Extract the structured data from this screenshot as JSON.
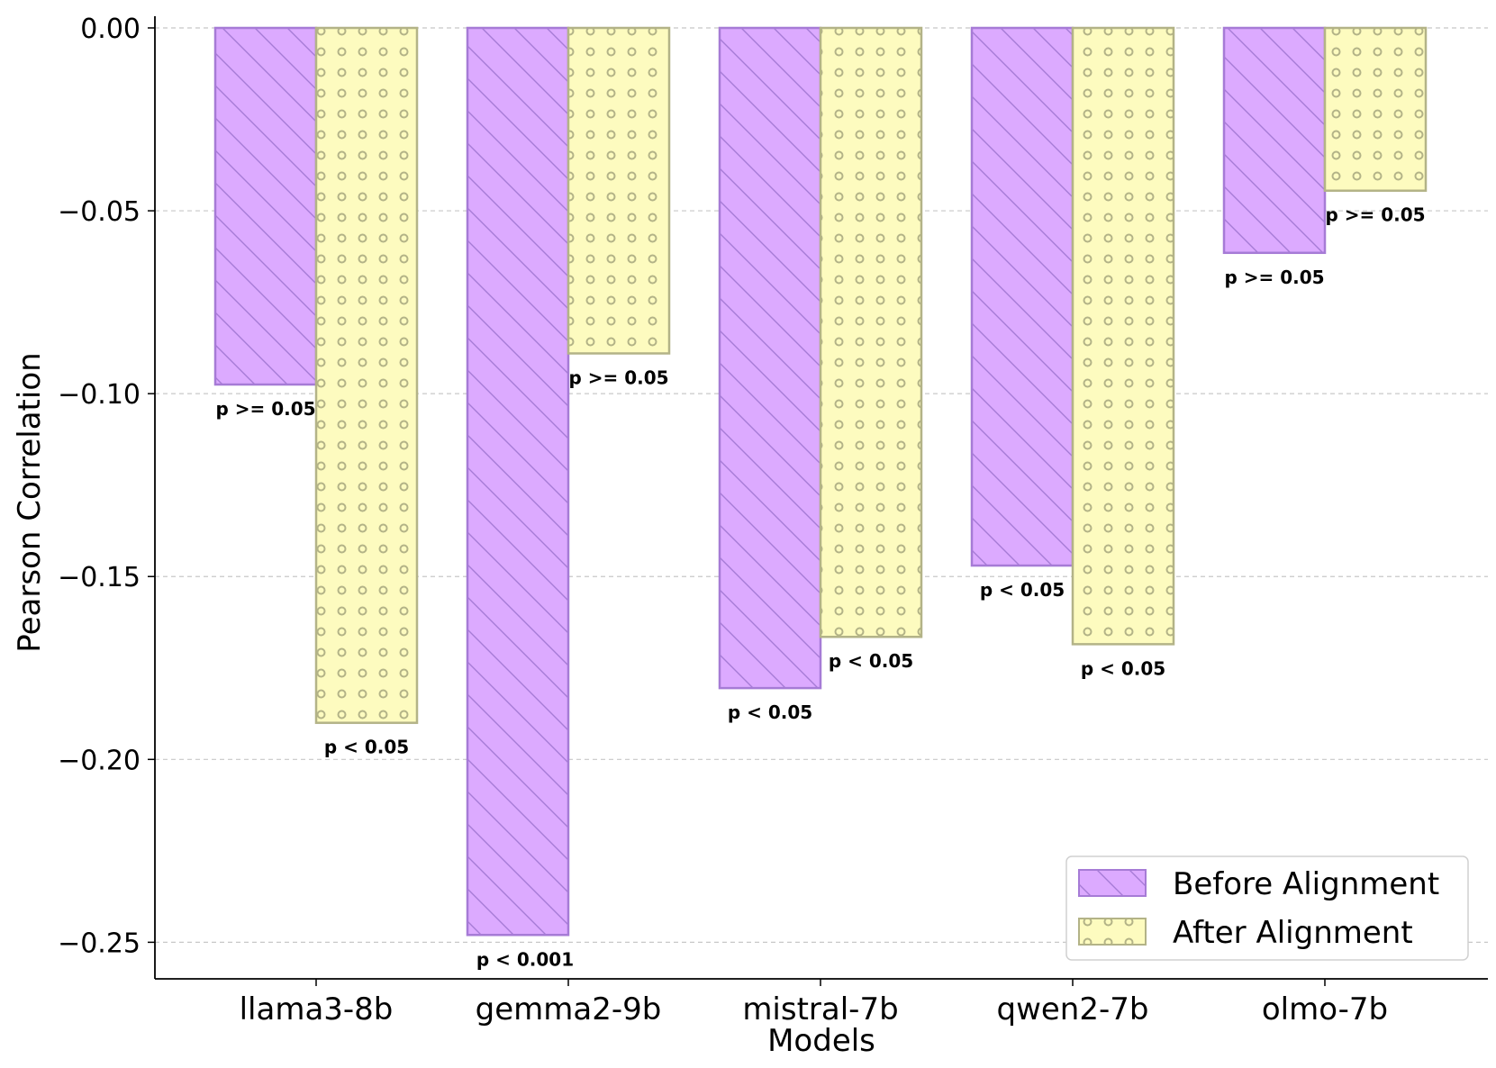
{
  "chart_data": {
    "type": "bar",
    "title": "",
    "xlabel": "Models",
    "ylabel": "Pearson Correlation",
    "categories": [
      "llama3-8b",
      "gemma2-9b",
      "mistral-7b",
      "qwen2-7b",
      "olmo-7b"
    ],
    "series": [
      {
        "name": "Before Alignment",
        "color": "#dcaaff",
        "edge_color": "#a67bd6",
        "hatch": "diagonal",
        "values": [
          -0.0975,
          -0.248,
          -0.1805,
          -0.147,
          -0.0615
        ],
        "p_labels": [
          "p >= 0.05",
          "p < 0.001",
          "p < 0.05",
          "p < 0.05",
          "p >= 0.05"
        ]
      },
      {
        "name": "After Alignment",
        "color": "#fdfbbf",
        "edge_color": "#b3b387",
        "hatch": "circles",
        "values": [
          -0.19,
          -0.089,
          -0.1665,
          -0.1685,
          -0.0445
        ],
        "p_labels": [
          "p < 0.05",
          "p >= 0.05",
          "p < 0.05",
          "p < 0.05",
          "p >= 0.05"
        ]
      }
    ],
    "ylim": [
      -0.26,
      0.0
    ],
    "yticks": [
      0.0,
      -0.05,
      -0.1,
      -0.15,
      -0.2,
      -0.25
    ],
    "ytick_labels": [
      "0.00",
      "−0.05",
      "−0.10",
      "−0.15",
      "−0.20",
      "−0.25"
    ],
    "grid": "y-dashed",
    "legend_position": "lower-right"
  }
}
